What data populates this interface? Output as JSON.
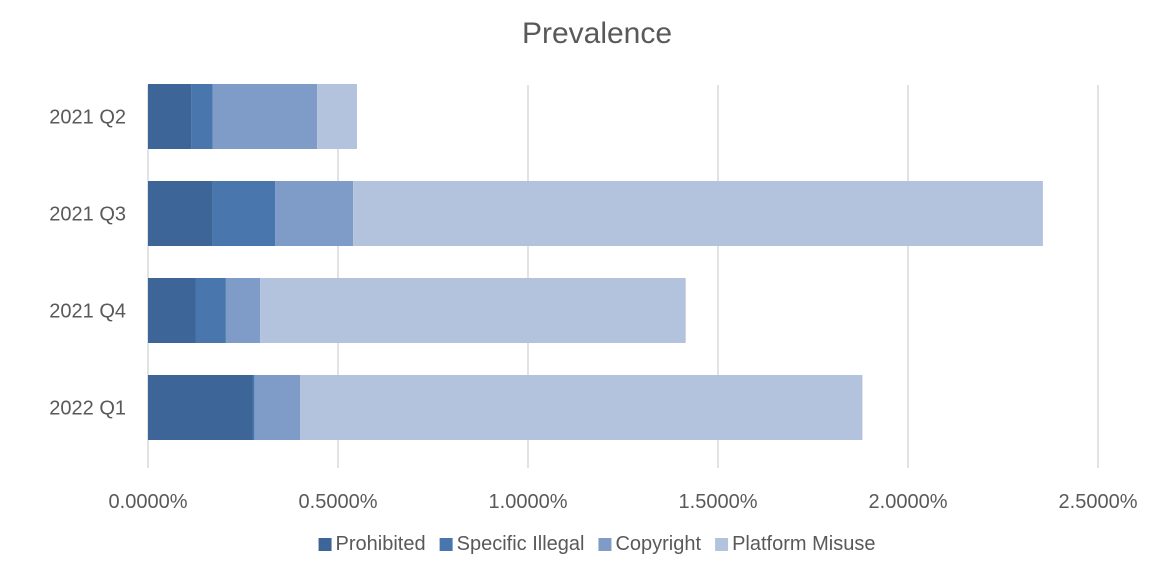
{
  "chart_data": {
    "type": "bar",
    "orientation": "horizontal",
    "stacked": true,
    "title": "Prevalence",
    "xlabel": "",
    "ylabel": "",
    "categories": [
      "2021 Q2",
      "2021 Q3",
      "2021 Q4",
      "2022 Q1"
    ],
    "series": [
      {
        "name": "Prohibited",
        "color": "#3d6598",
        "values": [
          0.115,
          0.17,
          0.125,
          0.275
        ]
      },
      {
        "name": "Specific Illegal",
        "color": "#4876ad",
        "values": [
          0.055,
          0.165,
          0.08,
          0.005
        ]
      },
      {
        "name": "Copyright",
        "color": "#7f9cc8",
        "values": [
          0.275,
          0.205,
          0.09,
          0.12
        ]
      },
      {
        "name": "Platform Misuse",
        "color": "#b4c3dd",
        "values": [
          0.105,
          1.815,
          1.12,
          1.48
        ]
      }
    ],
    "xlim": [
      0,
      2.5
    ],
    "xticks": [
      "0.0000%",
      "0.5000%",
      "1.0000%",
      "1.5000%",
      "2.0000%",
      "2.5000%"
    ],
    "grid": true,
    "legend_position": "bottom"
  }
}
